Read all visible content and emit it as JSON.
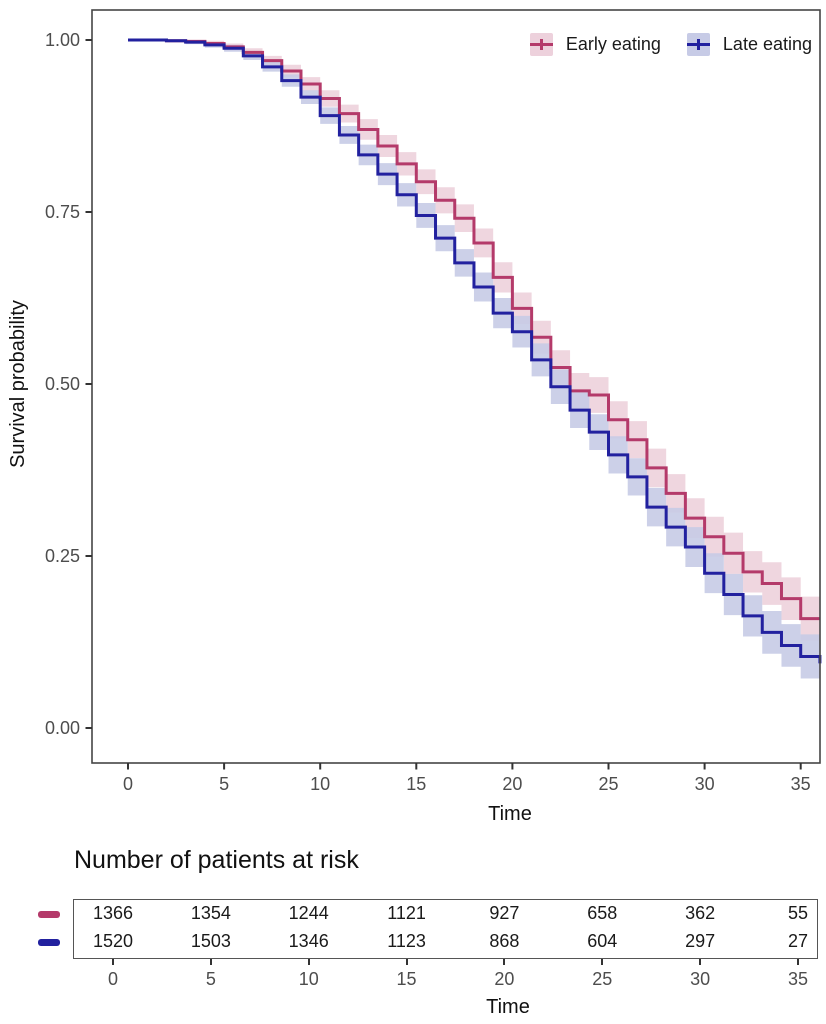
{
  "chart_data": {
    "type": "line",
    "subtype": "kaplan-meier-step",
    "xlabel": "Time",
    "ylabel": "Survival probability",
    "xlim": [
      0,
      36
    ],
    "ylim": [
      0.0,
      1.0
    ],
    "grid": false,
    "legend_position": "top-right-inside",
    "x_tick_labels": [
      "0",
      "5",
      "10",
      "15",
      "20",
      "25",
      "30",
      "35"
    ],
    "y_tick_labels": [
      "1.00",
      "0.75",
      "0.50",
      "0.25",
      "0.00"
    ],
    "y_tick_values": [
      1.0,
      0.75,
      0.5,
      0.25,
      0.0
    ],
    "x_tick_values": [
      0,
      5,
      10,
      15,
      20,
      25,
      30,
      35
    ],
    "x": [
      0,
      1,
      2,
      3,
      4,
      5,
      6,
      7,
      8,
      9,
      10,
      11,
      12,
      13,
      14,
      15,
      16,
      17,
      18,
      19,
      20,
      21,
      22,
      23,
      24,
      25,
      26,
      27,
      28,
      29,
      30,
      31,
      32,
      33,
      34,
      35,
      36
    ],
    "series": [
      {
        "name": "Early eating",
        "color": "#b43a6a",
        "ci_color": "#edd1dc",
        "values": [
          1.0,
          1.0,
          0.999,
          0.998,
          0.995,
          0.99,
          0.982,
          0.97,
          0.955,
          0.936,
          0.915,
          0.893,
          0.87,
          0.846,
          0.82,
          0.794,
          0.767,
          0.741,
          0.705,
          0.655,
          0.61,
          0.568,
          0.524,
          0.49,
          0.484,
          0.448,
          0.419,
          0.378,
          0.341,
          0.305,
          0.278,
          0.254,
          0.227,
          0.21,
          0.188,
          0.159,
          0.159
        ]
      },
      {
        "name": "Late eating",
        "color": "#22219f",
        "ci_color": "#c7cbe6",
        "values": [
          1.0,
          1.0,
          0.999,
          0.997,
          0.993,
          0.988,
          0.977,
          0.961,
          0.941,
          0.917,
          0.89,
          0.862,
          0.833,
          0.805,
          0.775,
          0.745,
          0.712,
          0.676,
          0.641,
          0.603,
          0.576,
          0.535,
          0.496,
          0.462,
          0.43,
          0.397,
          0.365,
          0.321,
          0.292,
          0.263,
          0.225,
          0.194,
          0.163,
          0.139,
          0.12,
          0.104,
          0.094
        ]
      }
    ],
    "ci_halfwidth": [
      0.002,
      0.002,
      0.002,
      0.003,
      0.004,
      0.005,
      0.006,
      0.007,
      0.009,
      0.01,
      0.012,
      0.013,
      0.015,
      0.016,
      0.017,
      0.018,
      0.019,
      0.02,
      0.021,
      0.022,
      0.023,
      0.024,
      0.025,
      0.026,
      0.026,
      0.027,
      0.027,
      0.028,
      0.028,
      0.029,
      0.029,
      0.03,
      0.03,
      0.031,
      0.031,
      0.032,
      0.032
    ],
    "axis_text_color": "#4d4d4d",
    "axis_line_color": "#454545",
    "risk_table": {
      "title": "Number of patients at risk",
      "x_label": "Time",
      "x_tick_labels": [
        "0",
        "5",
        "10",
        "15",
        "20",
        "25",
        "30",
        "35"
      ],
      "rows": [
        {
          "name": "Early eating",
          "color": "#b43a6a",
          "counts": [
            "1366",
            "1354",
            "1244",
            "1121",
            "927",
            "658",
            "362",
            "55"
          ]
        },
        {
          "name": "Late eating",
          "color": "#22219f",
          "counts": [
            "1520",
            "1503",
            "1346",
            "1123",
            "868",
            "604",
            "297",
            "27"
          ]
        }
      ]
    }
  }
}
